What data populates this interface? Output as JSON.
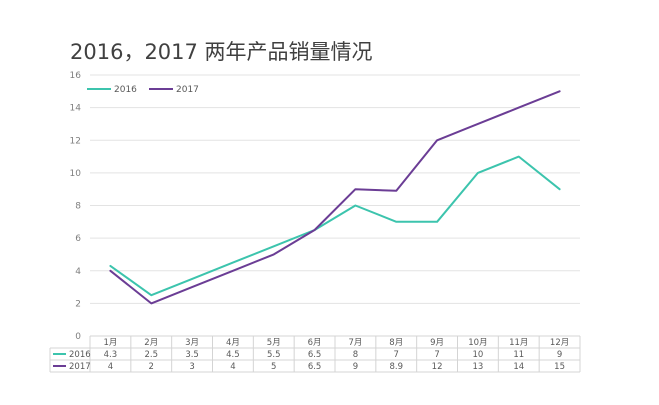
{
  "chart_data": {
    "type": "line",
    "title": "2016，2017 两年产品销量情况",
    "categories": [
      "1月",
      "2月",
      "3月",
      "4月",
      "5月",
      "6月",
      "7月",
      "8月",
      "9月",
      "10月",
      "11月",
      "12月"
    ],
    "series": [
      {
        "name": "2016",
        "color": "#3cc4ad",
        "values": [
          4.3,
          2.5,
          3.5,
          4.5,
          5.5,
          6.5,
          8,
          7,
          7,
          10,
          11,
          9
        ]
      },
      {
        "name": "2017",
        "color": "#6b3d95",
        "values": [
          4,
          2,
          3,
          4,
          5,
          6.5,
          9,
          8.9,
          12,
          13,
          14,
          15
        ]
      }
    ],
    "table_labels": [
      [
        "4.3",
        "2.5",
        "3.5",
        "4.5",
        "5.5",
        "6.5",
        "8",
        "7",
        "7",
        "10",
        "11",
        "9"
      ],
      [
        "4",
        "2",
        "3",
        "4",
        "5",
        "6.5",
        "9",
        "8.9",
        "12",
        "13",
        "14",
        "15"
      ]
    ],
    "ylim": [
      0,
      16
    ],
    "yticks": [
      "0",
      "2",
      "4",
      "6",
      "8",
      "10",
      "12",
      "14",
      "16"
    ],
    "grid": true,
    "legend": "top-left",
    "data_table": true
  }
}
